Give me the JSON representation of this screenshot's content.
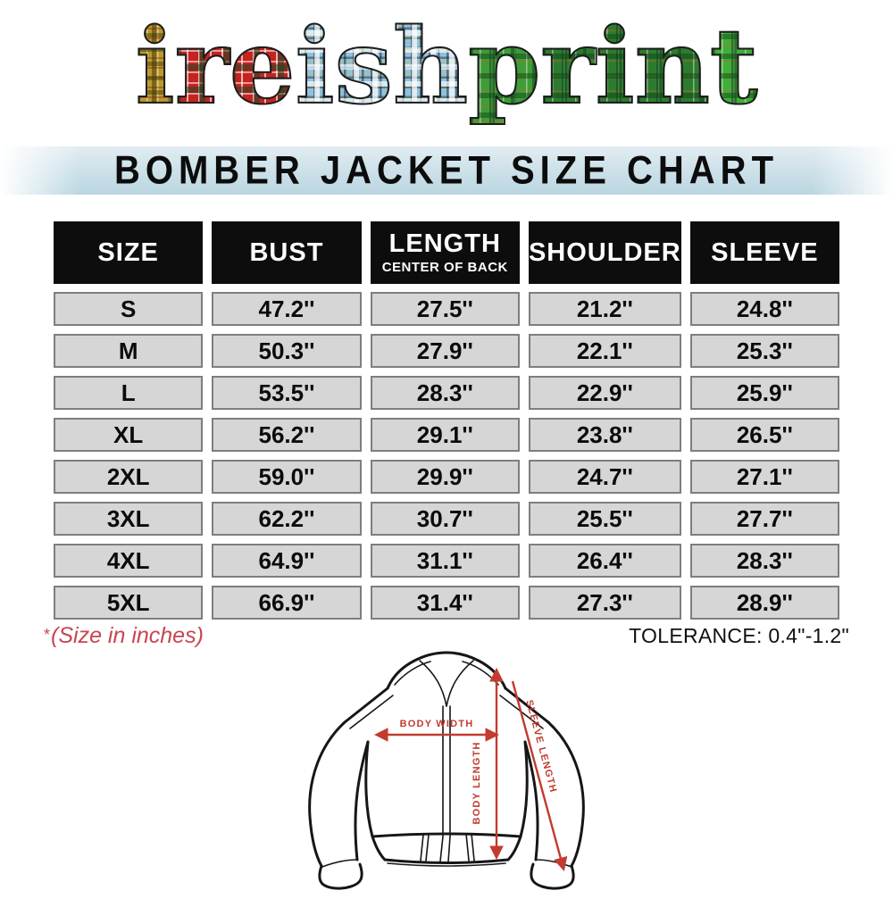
{
  "brand": {
    "name": "ireishprint",
    "letters": [
      {
        "ch": "i",
        "t": "gold"
      },
      {
        "ch": "r",
        "t": "red"
      },
      {
        "ch": "e",
        "t": "red"
      },
      {
        "ch": "i",
        "t": "blue"
      },
      {
        "ch": "s",
        "t": "blue"
      },
      {
        "ch": "h",
        "t": "blue"
      },
      {
        "ch": "p",
        "t": "green"
      },
      {
        "ch": "r",
        "t": "greendark"
      },
      {
        "ch": "i",
        "t": "greendark"
      },
      {
        "ch": "n",
        "t": "greendark"
      },
      {
        "ch": "t",
        "t": "greenbright"
      }
    ]
  },
  "banner": {
    "title": "BOMBER JACKET SIZE CHART"
  },
  "table": {
    "headers": [
      {
        "label": "SIZE",
        "sublabel": ""
      },
      {
        "label": "BUST",
        "sublabel": ""
      },
      {
        "label": "LENGTH",
        "sublabel": "CENTER OF BACK"
      },
      {
        "label": "SHOULDER",
        "sublabel": ""
      },
      {
        "label": "SLEEVE",
        "sublabel": ""
      }
    ],
    "rows": [
      {
        "size": "S",
        "bust": "47.2''",
        "length": "27.5''",
        "shoulder": "21.2''",
        "sleeve": "24.8''"
      },
      {
        "size": "M",
        "bust": "50.3''",
        "length": "27.9''",
        "shoulder": "22.1''",
        "sleeve": "25.3''"
      },
      {
        "size": "L",
        "bust": "53.5''",
        "length": "28.3''",
        "shoulder": "22.9''",
        "sleeve": "25.9''"
      },
      {
        "size": "XL",
        "bust": "56.2''",
        "length": "29.1''",
        "shoulder": "23.8''",
        "sleeve": "26.5''"
      },
      {
        "size": "2XL",
        "bust": "59.0''",
        "length": "29.9''",
        "shoulder": "24.7''",
        "sleeve": "27.1''"
      },
      {
        "size": "3XL",
        "bust": "62.2''",
        "length": "30.7''",
        "shoulder": "25.5''",
        "sleeve": "27.7''"
      },
      {
        "size": "4XL",
        "bust": "64.9''",
        "length": "31.1''",
        "shoulder": "26.4''",
        "sleeve": "28.3''"
      },
      {
        "size": "5XL",
        "bust": "66.9''",
        "length": "31.4''",
        "shoulder": "27.3''",
        "sleeve": "28.9''"
      }
    ]
  },
  "notes": {
    "footnote_star": "*",
    "footnote": "(Size in inches)",
    "tolerance": "TOLERANCE: 0.4\"-1.2\""
  },
  "diagram": {
    "body_width_label": "BODY WIDTH",
    "body_length_label": "BODY LENGTH",
    "sleeve_length_label": "SLEEVE LENGTH"
  },
  "colors": {
    "banner_blue": "#cfe2ea",
    "header_bg": "#0d0d0d",
    "header_text": "#ffffff",
    "cell_bg": "#d6d6d6",
    "cell_border": "#7e7e7e",
    "note_red": "#c84550",
    "arrow_red": "#c23b2e"
  }
}
